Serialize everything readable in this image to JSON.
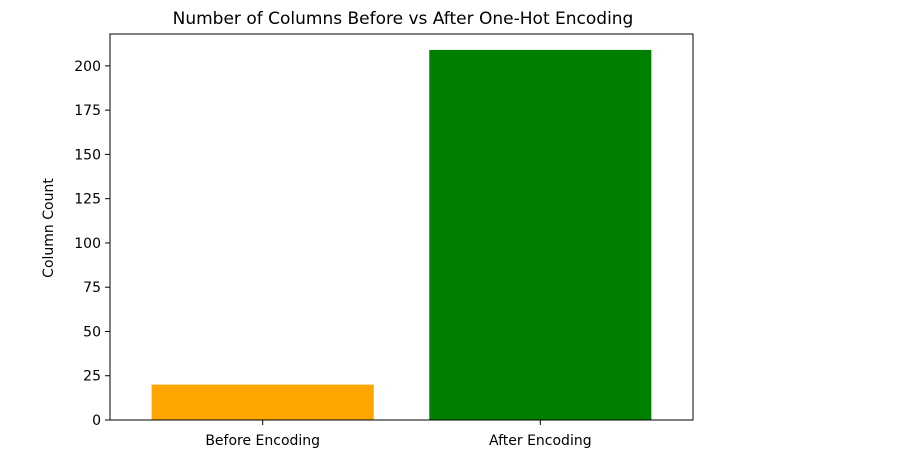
{
  "chart_data": {
    "type": "bar",
    "title": "Number of Columns Before vs After One-Hot Encoding",
    "xlabel": "",
    "ylabel": "Column Count",
    "categories": [
      "Before Encoding",
      "After Encoding"
    ],
    "values": [
      20,
      209
    ],
    "colors": [
      "#ffa500",
      "#008000"
    ],
    "ylim": [
      0,
      218
    ],
    "yticks": [
      0,
      25,
      50,
      75,
      100,
      125,
      150,
      175,
      200
    ],
    "ytick_labels": [
      "0",
      "25",
      "50",
      "75",
      "100",
      "125",
      "150",
      "175",
      "200"
    ],
    "grid": false,
    "legend": "none"
  }
}
